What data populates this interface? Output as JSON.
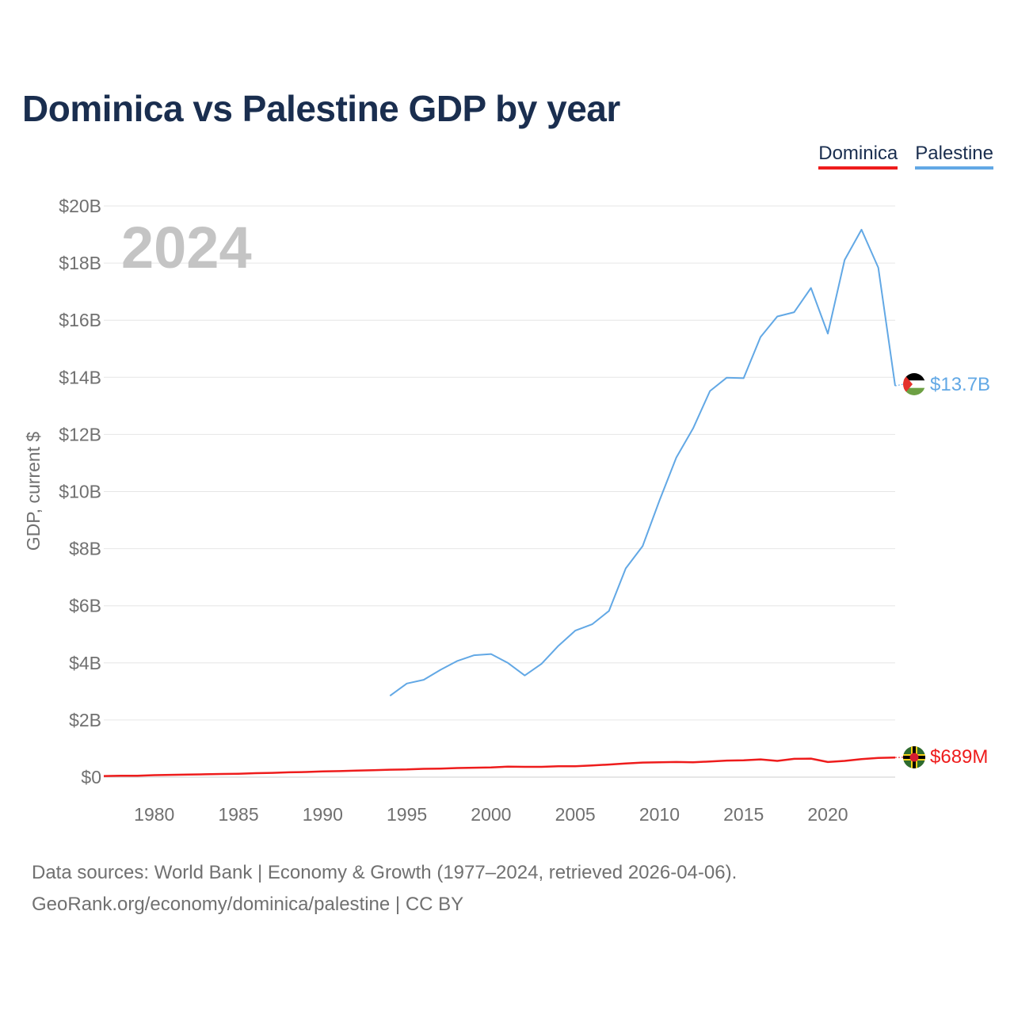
{
  "title": "Dominica vs Palestine GDP by year",
  "legend": {
    "dominica": "Dominica",
    "palestine": "Palestine"
  },
  "footer": {
    "line1": "Data sources: World Bank | Economy & Growth (1977–2024, retrieved 2026-04-06).",
    "line2": "GeoRank.org/economy/dominica/palestine | CC BY"
  },
  "chart_data": {
    "type": "line",
    "title": "Dominica vs Palestine GDP by year",
    "current_year_label": "2024",
    "xlabel": "",
    "ylabel": "GDP, current $",
    "xlim": [
      1977,
      2024
    ],
    "ylim": [
      0,
      20
    ],
    "y_unit": "billions USD",
    "y_ticks": [
      0,
      2,
      4,
      6,
      8,
      10,
      12,
      14,
      16,
      18,
      20
    ],
    "y_tick_labels": [
      "$0",
      "$2B",
      "$4B",
      "$6B",
      "$8B",
      "$10B",
      "$12B",
      "$14B",
      "$16B",
      "$18B",
      "$20B"
    ],
    "x_ticks": [
      1980,
      1985,
      1990,
      1995,
      2000,
      2005,
      2010,
      2015,
      2020
    ],
    "x_tick_labels": [
      "1980",
      "1985",
      "1990",
      "1995",
      "2000",
      "2005",
      "2010",
      "2015",
      "2020"
    ],
    "grid": true,
    "legend_position": "top-right",
    "series": [
      {
        "name": "Dominica",
        "color": "#ee1c1c",
        "end_label": "$689M",
        "flag": "dominica",
        "x": [
          1977,
          1978,
          1979,
          1980,
          1981,
          1982,
          1983,
          1984,
          1985,
          1986,
          1987,
          1988,
          1989,
          1990,
          1991,
          1992,
          1993,
          1994,
          1995,
          1996,
          1997,
          1998,
          1999,
          2000,
          2001,
          2002,
          2003,
          2004,
          2005,
          2006,
          2007,
          2008,
          2009,
          2010,
          2011,
          2012,
          2013,
          2014,
          2015,
          2016,
          2017,
          2018,
          2019,
          2020,
          2021,
          2022,
          2023,
          2024
        ],
        "values": [
          0.04,
          0.05,
          0.05,
          0.07,
          0.08,
          0.09,
          0.1,
          0.11,
          0.12,
          0.14,
          0.15,
          0.17,
          0.18,
          0.2,
          0.21,
          0.23,
          0.24,
          0.26,
          0.27,
          0.29,
          0.3,
          0.32,
          0.33,
          0.34,
          0.37,
          0.36,
          0.36,
          0.38,
          0.38,
          0.41,
          0.44,
          0.48,
          0.51,
          0.52,
          0.53,
          0.52,
          0.55,
          0.58,
          0.59,
          0.62,
          0.57,
          0.64,
          0.65,
          0.53,
          0.57,
          0.63,
          0.67,
          0.689
        ]
      },
      {
        "name": "Palestine",
        "color": "#62a8e5",
        "end_label": "$13.7B",
        "flag": "palestine",
        "x": [
          1994,
          1995,
          1996,
          1997,
          1998,
          1999,
          2000,
          2001,
          2002,
          2003,
          2004,
          2005,
          2006,
          2007,
          2008,
          2009,
          2010,
          2011,
          2012,
          2013,
          2014,
          2015,
          2016,
          2017,
          2018,
          2019,
          2020,
          2021,
          2022,
          2023,
          2024
        ],
        "values": [
          2.85,
          3.28,
          3.41,
          3.76,
          4.07,
          4.27,
          4.31,
          4.0,
          3.56,
          3.97,
          4.6,
          5.13,
          5.35,
          5.82,
          7.31,
          8.09,
          9.68,
          11.19,
          12.21,
          13.52,
          13.99,
          13.97,
          15.41,
          16.13,
          16.28,
          17.13,
          15.53,
          18.11,
          19.17,
          17.84,
          13.7
        ]
      }
    ]
  }
}
